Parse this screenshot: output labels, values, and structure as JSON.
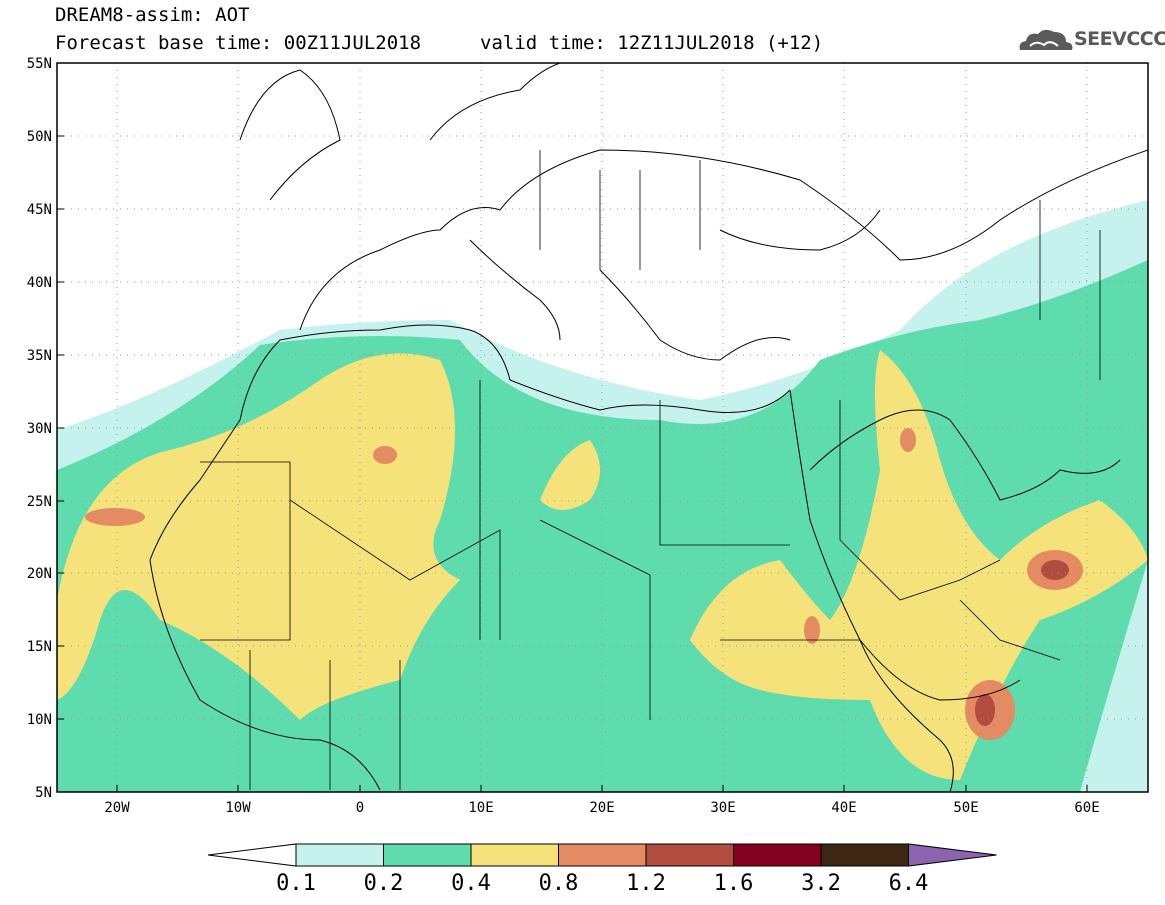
{
  "header": {
    "title_line1": "DREAM8-assim: AOT",
    "title_line2": "Forecast base time: 00Z11JUL2018",
    "title_line2b": "valid time: 12Z11JUL2018 (+12)",
    "logo_text": "SEEVCCC",
    "logo_icon": "cloud-logo-icon"
  },
  "map": {
    "lat_labels": [
      "55N",
      "50N",
      "45N",
      "40N",
      "35N",
      "30N",
      "25N",
      "20N",
      "15N",
      "10N",
      "5N"
    ],
    "lon_labels": [
      "20W",
      "10W",
      "0",
      "10E",
      "20E",
      "30E",
      "40E",
      "50E",
      "60E"
    ],
    "lat_range": [
      5,
      55
    ],
    "lon_range": [
      -25,
      65
    ],
    "grid": true
  },
  "colorbar": {
    "labels": [
      "0.1",
      "0.2",
      "0.4",
      "0.8",
      "1.2",
      "1.6",
      "3.2",
      "6.4"
    ],
    "colors": [
      "#ffffff",
      "#c5f2ec",
      "#5fdcae",
      "#f6e27a",
      "#e48b63",
      "#b24c3e",
      "#830020",
      "#3d2612",
      "#8c64ad"
    ]
  }
}
